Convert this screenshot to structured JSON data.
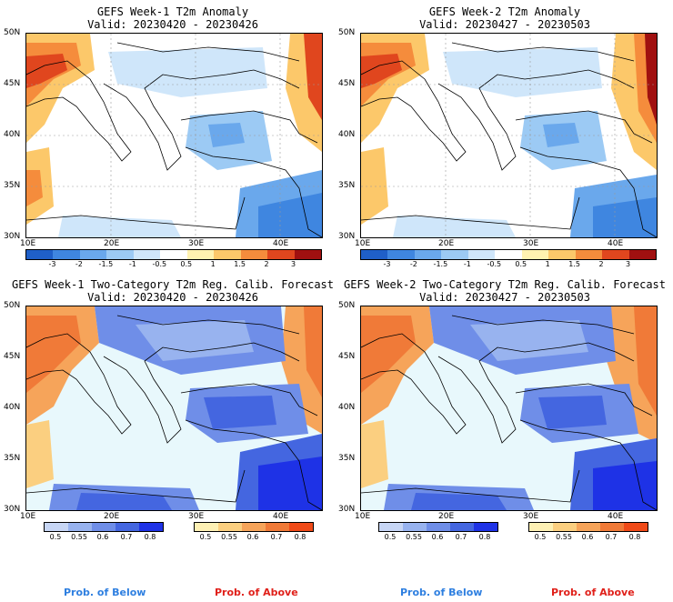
{
  "panels": [
    {
      "title": "GEFS Week-1 T2m Anomaly",
      "valid": "Valid: 20230420 - 20230426"
    },
    {
      "title": "GEFS Week-2 T2m Anomaly",
      "valid": "Valid: 20230427 - 20230503"
    },
    {
      "title": "GEFS Week-1 Two-Category T2m Reg. Calib. Forecast",
      "valid": "Valid: 20230420 - 20230426"
    },
    {
      "title": "GEFS Week-2 Two-Category T2m Reg. Calib. Forecast",
      "valid": "Valid: 20230427 - 20230503"
    }
  ],
  "lat_ticks": [
    "50N",
    "45N",
    "40N",
    "35N",
    "30N"
  ],
  "lon_ticks": [
    "10E",
    "20E",
    "30E",
    "40E"
  ],
  "anomaly_colorbar": {
    "labels": [
      "-3",
      "-2",
      "-1.5",
      "-1",
      "-0.5",
      "0.5",
      "1",
      "1.5",
      "2",
      "3"
    ],
    "colors": [
      "#1f5fc8",
      "#3f86e0",
      "#6aa8ec",
      "#9ccaf4",
      "#cfe6fa",
      "#ffffff",
      "#fff2b0",
      "#fcc86a",
      "#f58c3c",
      "#e0461e",
      "#a01010"
    ]
  },
  "prob_below_colorbar": {
    "labels": [
      "0.5",
      "0.55",
      "0.6",
      "0.7",
      "0.8"
    ],
    "colors": [
      "#c7d6f5",
      "#98b3ef",
      "#6f8ee8",
      "#4466e0",
      "#1e32e6"
    ]
  },
  "prob_above_colorbar": {
    "labels": [
      "0.5",
      "0.55",
      "0.6",
      "0.7",
      "0.8"
    ],
    "colors": [
      "#fdf0b4",
      "#fbcf80",
      "#f6a45a",
      "#f07a38",
      "#f04a18"
    ]
  },
  "legend": {
    "below": "Prob. of Below",
    "above": "Prob. of Above",
    "below_color": "#2e7fe0",
    "above_color": "#e0201a"
  }
}
